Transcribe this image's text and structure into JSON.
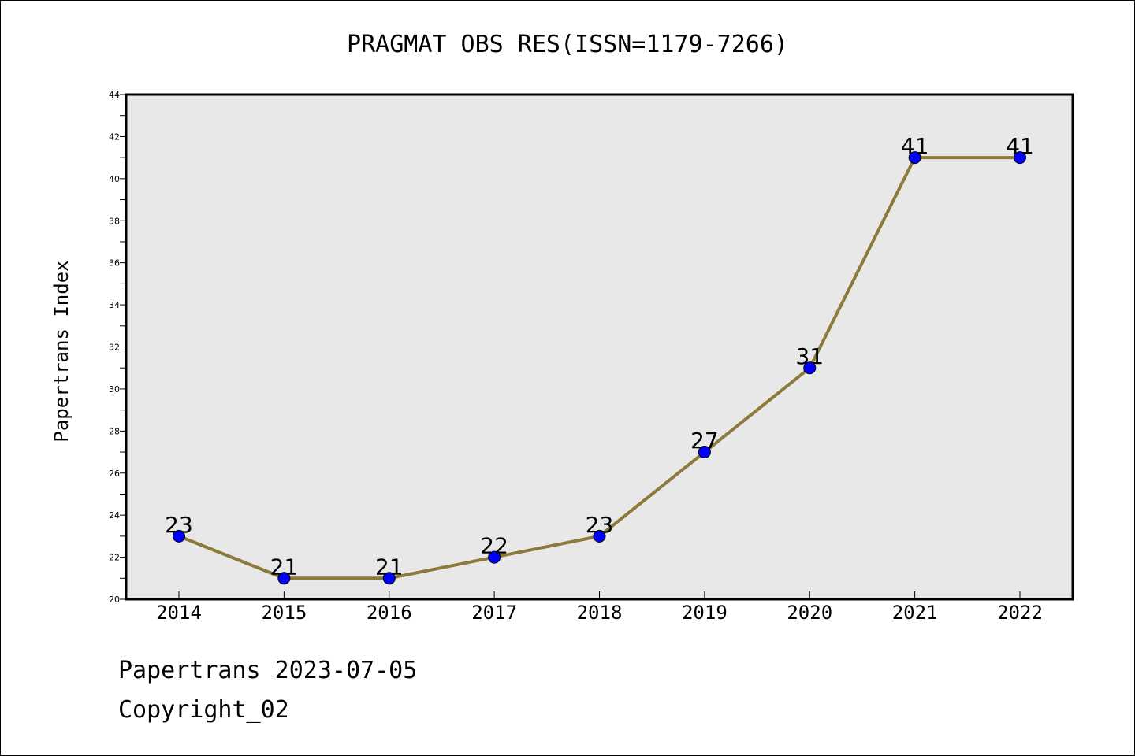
{
  "chart_data": {
    "type": "line",
    "title": "PRAGMAT OBS RES(ISSN=1179-7266)",
    "xlabel": "",
    "ylabel": "Papertrans Index",
    "x": [
      "2014",
      "2015",
      "2016",
      "2017",
      "2018",
      "2019",
      "2020",
      "2021",
      "2022"
    ],
    "series": [
      {
        "values": [
          23,
          21,
          21,
          22,
          23,
          27,
          31,
          41,
          41
        ]
      }
    ],
    "ylim": [
      20,
      44
    ],
    "yticks": [
      "20",
      "22",
      "24",
      "26",
      "28",
      "30",
      "32",
      "34",
      "36",
      "38",
      "40",
      "42",
      "44"
    ],
    "data_labels": [
      "23",
      "21",
      "21",
      "22",
      "23",
      "27",
      "31",
      "41",
      "41"
    ],
    "grid": false,
    "colors": {
      "line": "#8c7a3a",
      "marker": "#0000ff",
      "plot_background": "#e8e8e8"
    }
  },
  "footer": {
    "line1": "Papertrans 2023-07-05",
    "line2": "Copyright_02"
  }
}
